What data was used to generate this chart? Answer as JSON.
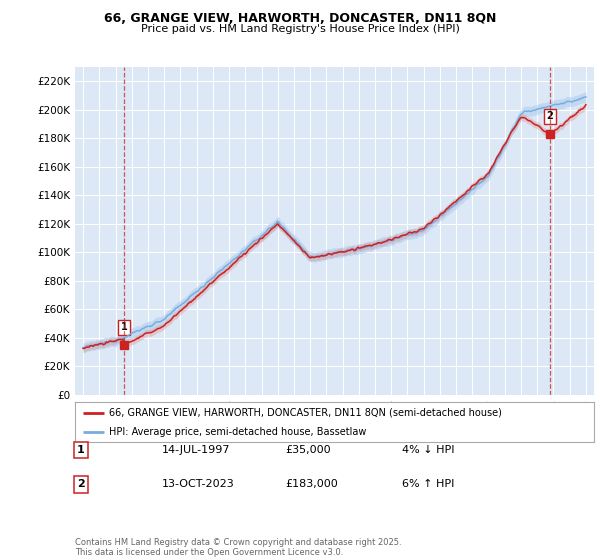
{
  "title_line1": "66, GRANGE VIEW, HARWORTH, DONCASTER, DN11 8QN",
  "title_line2": "Price paid vs. HM Land Registry's House Price Index (HPI)",
  "background_color": "#ffffff",
  "plot_bg_color": "#dce8f5",
  "grid_color": "#ffffff",
  "hpi_color": "#7aaddc",
  "price_color": "#cc2222",
  "hpi_fill_color": "#aaccee",
  "legend_label_price": "66, GRANGE VIEW, HARWORTH, DONCASTER, DN11 8QN (semi-detached house)",
  "legend_label_hpi": "HPI: Average price, semi-detached house, Bassetlaw",
  "point1_label": "1",
  "point1_date": "14-JUL-1997",
  "point1_price": "£35,000",
  "point1_hpi": "4% ↓ HPI",
  "point1_x": 1997.54,
  "point1_y": 35000,
  "point2_label": "2",
  "point2_date": "13-OCT-2023",
  "point2_price": "£183,000",
  "point2_hpi": "6% ↑ HPI",
  "point2_x": 2023.79,
  "point2_y": 183000,
  "footer": "Contains HM Land Registry data © Crown copyright and database right 2025.\nThis data is licensed under the Open Government Licence v3.0.",
  "ylim": [
    0,
    230000
  ],
  "xlim": [
    1994.5,
    2026.5
  ],
  "yticks": [
    0,
    20000,
    40000,
    60000,
    80000,
    100000,
    120000,
    140000,
    160000,
    180000,
    200000,
    220000
  ],
  "ytick_labels": [
    "£0",
    "£20K",
    "£40K",
    "£60K",
    "£80K",
    "£100K",
    "£120K",
    "£140K",
    "£160K",
    "£180K",
    "£200K",
    "£220K"
  ],
  "xticks": [
    1995,
    1996,
    1997,
    1998,
    1999,
    2000,
    2001,
    2002,
    2003,
    2004,
    2005,
    2006,
    2007,
    2008,
    2009,
    2010,
    2011,
    2012,
    2013,
    2014,
    2015,
    2016,
    2017,
    2018,
    2019,
    2020,
    2021,
    2022,
    2023,
    2024,
    2025,
    2026
  ]
}
